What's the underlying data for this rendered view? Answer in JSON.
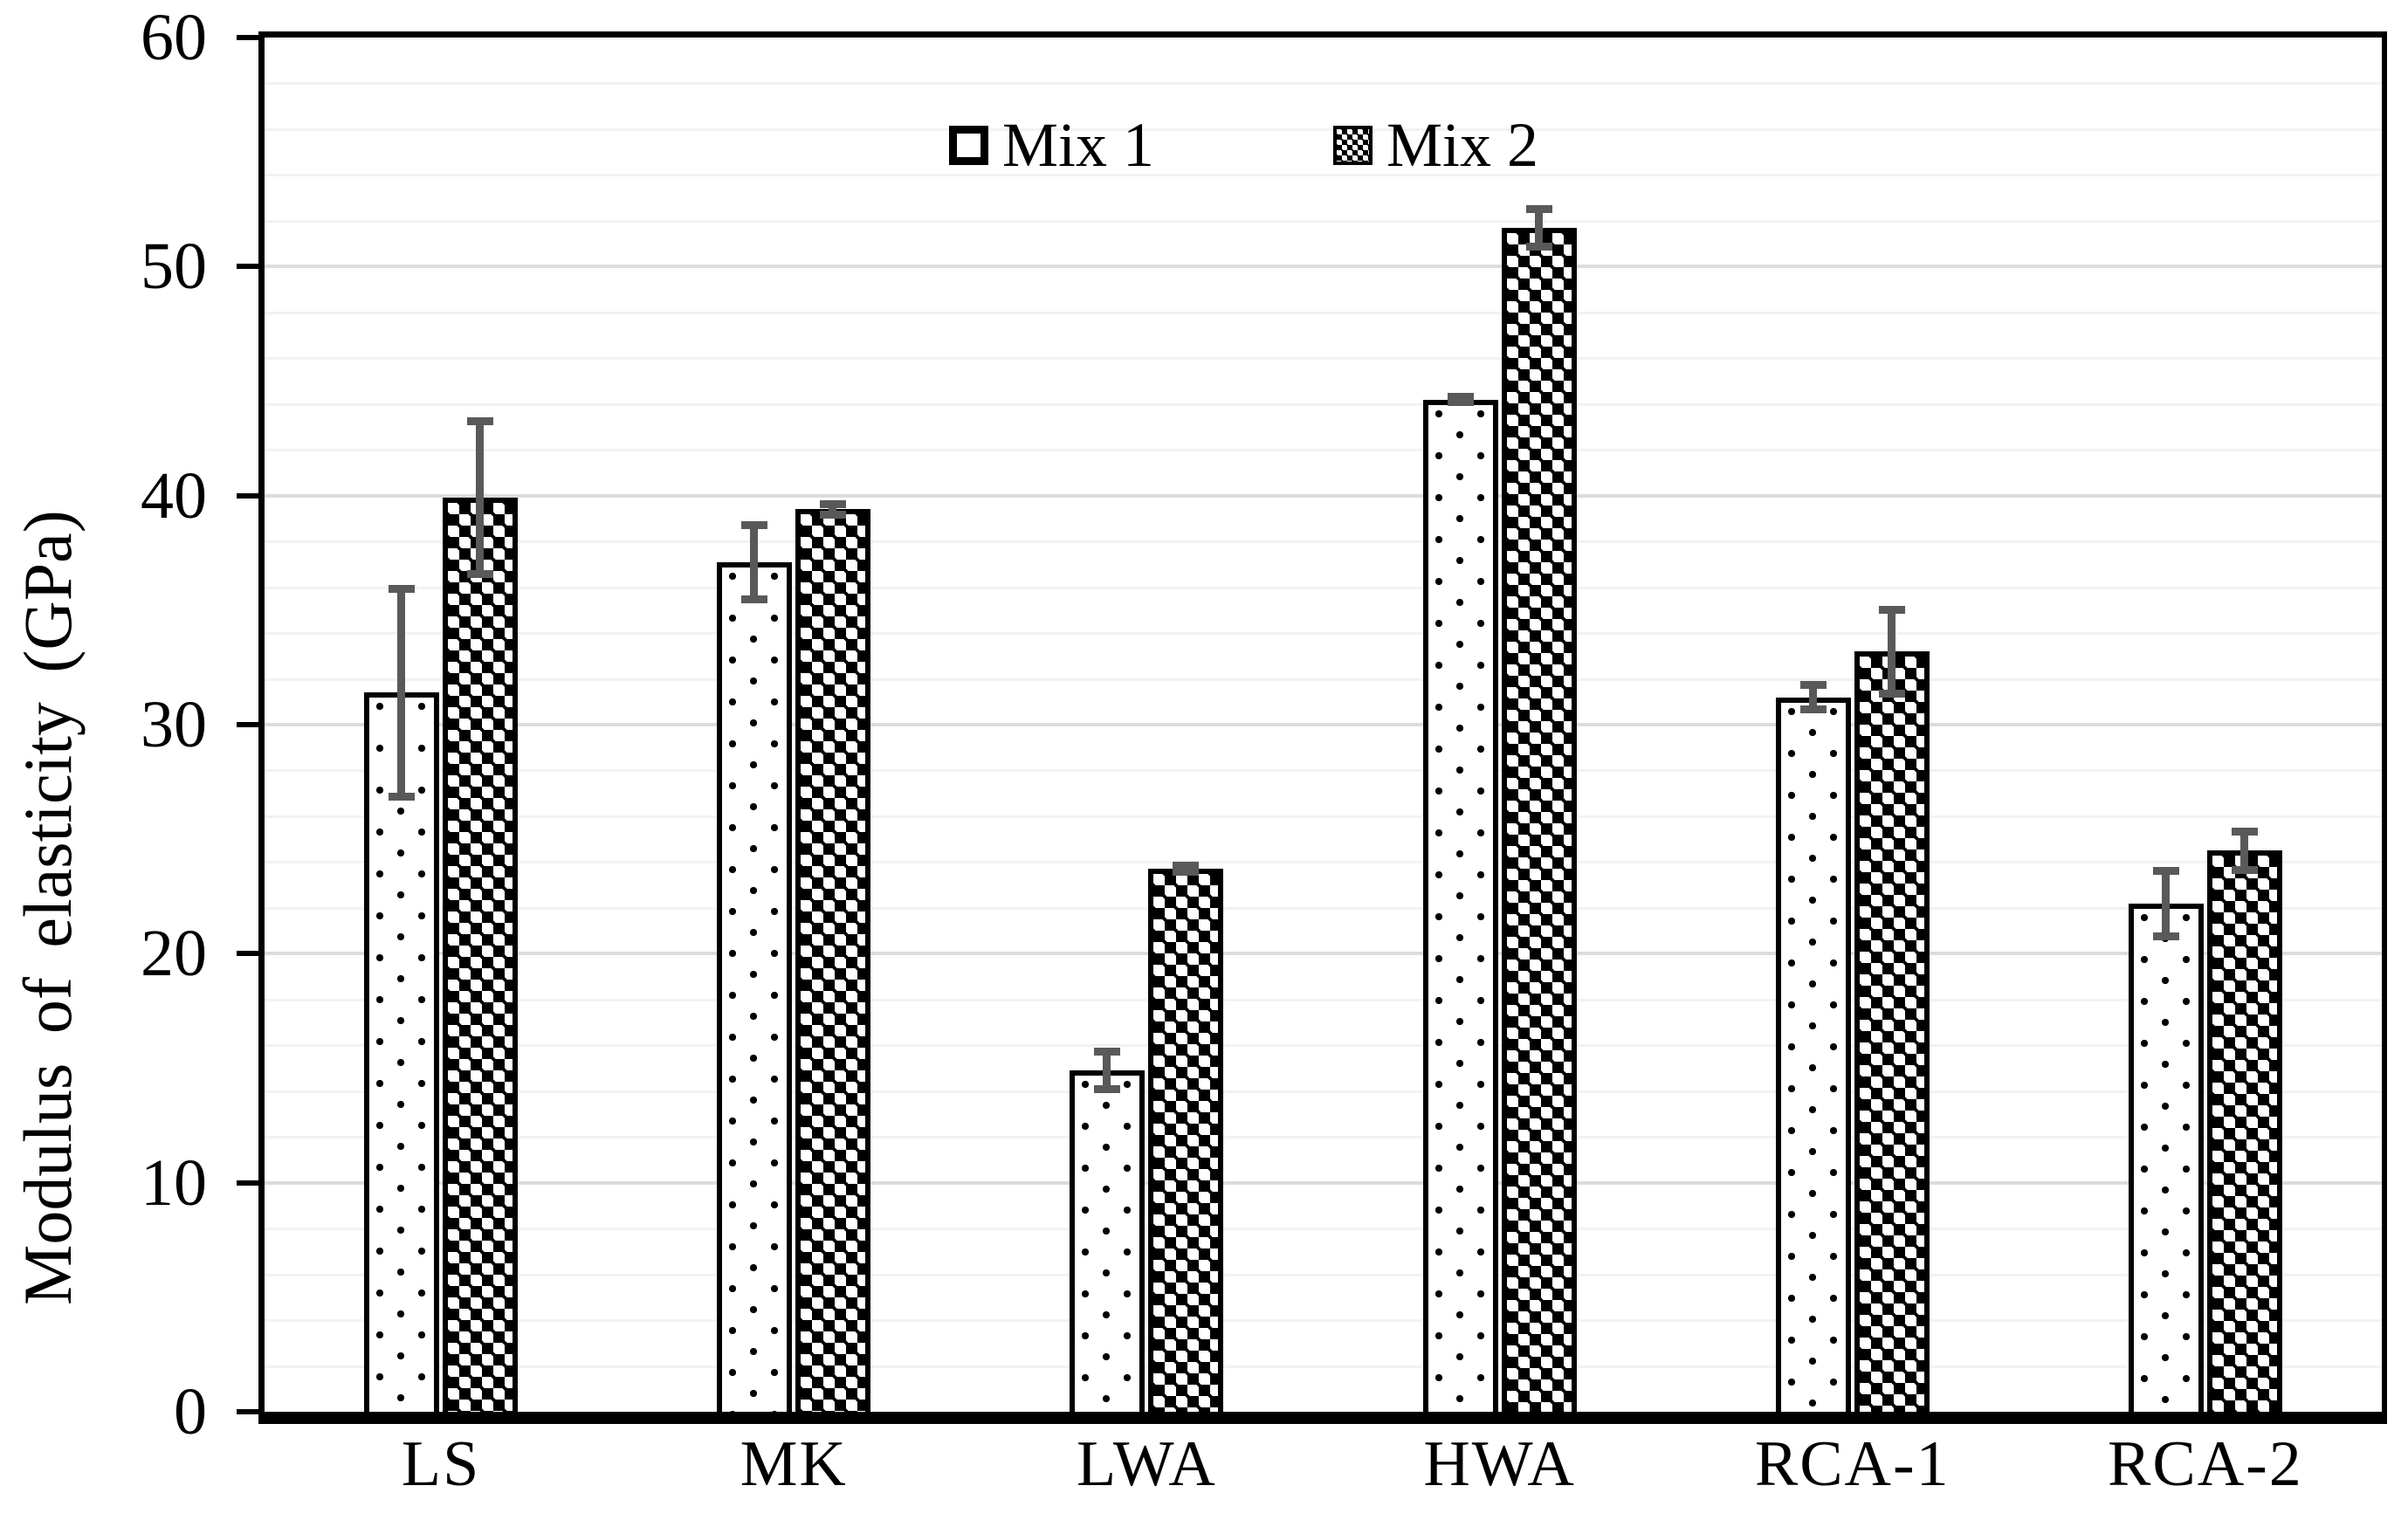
{
  "chart_data": {
    "type": "bar",
    "title": "",
    "ylabel": "Modulus of elasticity  (GPa)",
    "xlabel": "",
    "ylim": [
      0,
      60
    ],
    "ytick_step": 10,
    "minor_grid_step": 2,
    "yticks": [
      0,
      10,
      20,
      30,
      40,
      50,
      60
    ],
    "grid": true,
    "legend_position": "top-center",
    "categories": [
      "LS",
      "MK",
      "LWA",
      "HWA",
      "RCA-1",
      "RCA-2"
    ],
    "series": [
      {
        "name": "Mix 1",
        "pattern": "dots",
        "values": [
          31.4,
          37.1,
          14.9,
          44.2,
          31.2,
          22.2
        ],
        "errors": [
          4.7,
          1.8,
          1.0,
          0.3,
          0.7,
          1.6
        ]
      },
      {
        "name": "Mix 2",
        "pattern": "checker",
        "values": [
          39.9,
          39.4,
          23.7,
          51.7,
          33.2,
          24.5
        ],
        "errors": [
          3.5,
          0.4,
          0.3,
          1.0,
          2.0,
          1.0
        ]
      }
    ],
    "colors": {
      "bar_outline": "#000000",
      "error_bar": "#595959",
      "minor_grid": "#f2f2f2",
      "major_grid": "#dcdcdc",
      "axis": "#000000",
      "background": "#ffffff"
    }
  }
}
